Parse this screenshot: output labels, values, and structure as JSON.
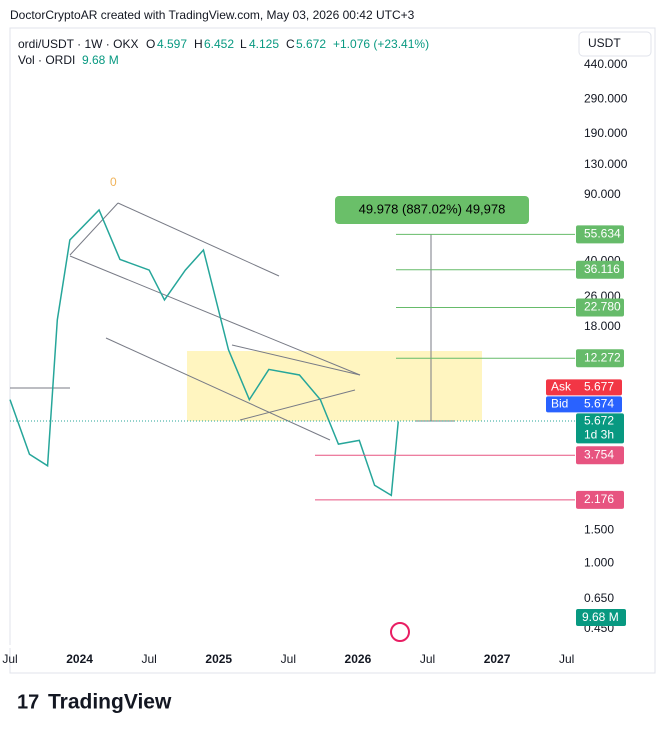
{
  "header": {
    "attribution": "DoctorCryptoAR created with TradingView.com, May 03, 2026 00:42 UTC+3"
  },
  "legend": {
    "symbol": "ordi/USDT · 1W · OKX",
    "open_label": "O",
    "open": "4.597",
    "high_label": "H",
    "high": "6.452",
    "low_label": "L",
    "low": "4.125",
    "close_label": "C",
    "close": "5.672",
    "change": "+1.076 (+23.41%)",
    "volume_label": "Vol · ORDI",
    "volume": "9.68 M"
  },
  "currency_button": "USDT",
  "chart_data": {
    "type": "line",
    "log_scale": true,
    "grid": false,
    "xlim": [
      2023.5,
      2027.56
    ],
    "xticks": [
      {
        "value": 2023.5,
        "label": "Jul"
      },
      {
        "value": 2024,
        "label": "2024"
      },
      {
        "value": 2024.5,
        "label": "Jul"
      },
      {
        "value": 2025,
        "label": "2025"
      },
      {
        "value": 2025.5,
        "label": "Jul"
      },
      {
        "value": 2026,
        "label": "2026"
      },
      {
        "value": 2026.5,
        "label": "Jul"
      },
      {
        "value": 2027,
        "label": "2027"
      },
      {
        "value": 2027.5,
        "label": "Jul"
      }
    ],
    "ylim": [
      0.37,
      675
    ],
    "yticks": [
      {
        "value": 440,
        "label": "440.000"
      },
      {
        "value": 290,
        "label": "290.000"
      },
      {
        "value": 190,
        "label": "190.000"
      },
      {
        "value": 130,
        "label": "130.000"
      },
      {
        "value": 90,
        "label": "90.000"
      },
      {
        "value": 40,
        "label": "40.000"
      },
      {
        "value": 26,
        "label": "26.000"
      },
      {
        "value": 18,
        "label": "18.000"
      },
      {
        "value": 1.5,
        "label": "1.500"
      },
      {
        "value": 1,
        "label": "1.000"
      },
      {
        "value": 0.65,
        "label": "0.650"
      },
      {
        "value": 0.45,
        "label": "0.450"
      }
    ],
    "series": [
      {
        "name": "ordi/USDT",
        "color": "#26a69a",
        "x": [
          2023.5,
          2023.64,
          2023.77,
          2023.84,
          2023.93,
          2024.14,
          2024.29,
          2024.5,
          2024.61,
          2024.76,
          2024.89,
          2025.07,
          2025.22,
          2025.36,
          2025.58,
          2025.73,
          2025.86,
          2026.01,
          2026.12,
          2026.24,
          2026.29
        ],
        "values": [
          7.4,
          3.8,
          3.3,
          19.6,
          52,
          75,
          41,
          36,
          25,
          36,
          46,
          13.6,
          7.4,
          10.7,
          10,
          7.4,
          4.3,
          4.5,
          2.6,
          2.3,
          5.672
        ]
      }
    ],
    "targets": {
      "color": "#66bb6a",
      "values": [
        55.634,
        36.116,
        22.78,
        12.272
      ],
      "value_labels": [
        "55.634",
        "36.116",
        "22.780",
        "12.272"
      ]
    },
    "supports": {
      "color": "#e75480",
      "values": [
        3.754,
        2.176
      ],
      "value_labels": [
        "3.754",
        "2.176"
      ]
    },
    "ask": {
      "label": "Ask",
      "value": 5.677,
      "value_label": "5.677"
    },
    "bid": {
      "label": "Bid",
      "value": 5.674,
      "value_label": "5.674"
    },
    "last": {
      "value": 5.672,
      "value_label": "5.672",
      "countdown": "1d 3h"
    },
    "volume_tag": "9.68 M",
    "measure": {
      "text": "49.978 (887.02%) 49,978"
    },
    "fib_label": "0"
  },
  "footer": {
    "brand": "TradingView"
  }
}
